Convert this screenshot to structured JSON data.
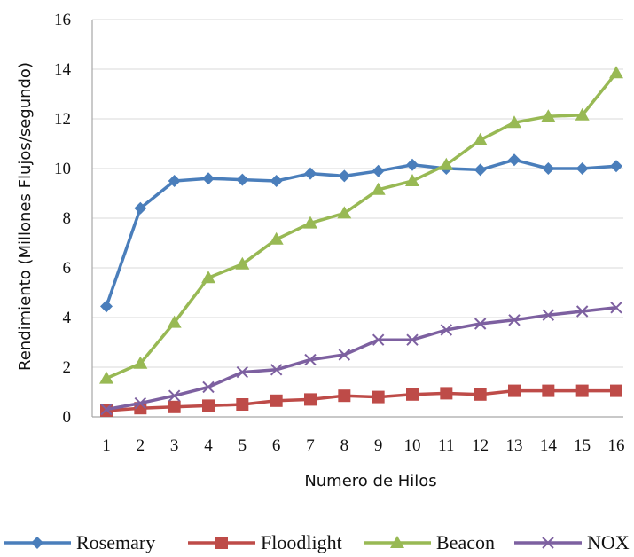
{
  "chart_data": {
    "type": "line",
    "xlabel": "Numero de Hilos",
    "ylabel": "Rendimiento (Millones Flujos/segundo)",
    "x": [
      1,
      2,
      3,
      4,
      5,
      6,
      7,
      8,
      9,
      10,
      11,
      12,
      13,
      14,
      15,
      16
    ],
    "x_tick_labels": [
      "1",
      "2",
      "3",
      "4",
      "5",
      "6",
      "7",
      "8",
      "9",
      "10",
      "11",
      "12",
      "13",
      "14",
      "15",
      "16"
    ],
    "y_tick_labels": [
      "0",
      "2",
      "4",
      "6",
      "8",
      "10",
      "12",
      "14",
      "16"
    ],
    "ylim": [
      0,
      16
    ],
    "grid": "horizontal",
    "legend_position": "bottom",
    "series": [
      {
        "name": "Rosemary",
        "color": "#4a7ebb",
        "marker": "diamond",
        "values": [
          4.45,
          8.4,
          9.5,
          9.6,
          9.55,
          9.5,
          9.8,
          9.7,
          9.9,
          10.15,
          10.0,
          9.95,
          10.35,
          10.0,
          10.0,
          10.1
        ]
      },
      {
        "name": "Floodlight",
        "color": "#be4b48",
        "marker": "square",
        "values": [
          0.25,
          0.35,
          0.4,
          0.45,
          0.5,
          0.65,
          0.7,
          0.85,
          0.8,
          0.9,
          0.95,
          0.9,
          1.05,
          1.05,
          1.05,
          1.05
        ]
      },
      {
        "name": "Beacon",
        "color": "#98b954",
        "marker": "triangle",
        "values": [
          1.55,
          2.15,
          3.8,
          5.6,
          6.15,
          7.15,
          7.8,
          8.2,
          9.15,
          9.5,
          10.15,
          11.15,
          11.85,
          12.1,
          12.15,
          13.85
        ]
      },
      {
        "name": "NOX",
        "color": "#7d60a0",
        "marker": "x",
        "values": [
          0.3,
          0.55,
          0.85,
          1.2,
          1.8,
          1.9,
          2.3,
          2.5,
          3.1,
          3.1,
          3.5,
          3.75,
          3.9,
          4.1,
          4.25,
          4.4
        ]
      }
    ]
  }
}
